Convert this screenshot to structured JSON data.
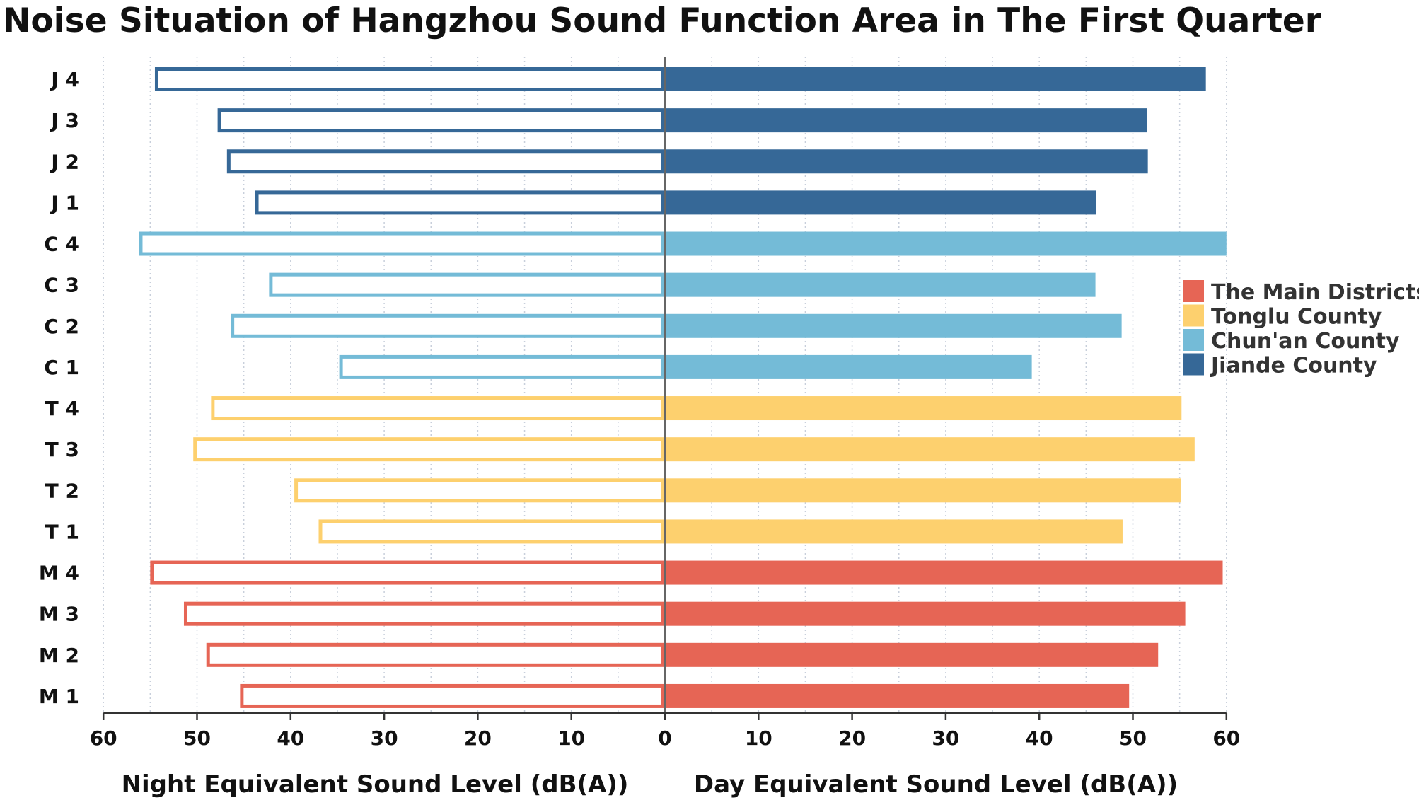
{
  "chart_data": {
    "type": "bar",
    "orientation": "horizontal-diverging",
    "title": "Noise Situation of Hangzhou Sound Function Area in The First Quarter",
    "xlabel_left": "Night Equivalent Sound Level   (dB(A))",
    "xlabel_right": "Day Equivalent Sound Level  (dB(A))",
    "xlim": [
      0,
      60
    ],
    "ticks": [
      60,
      50,
      40,
      30,
      20,
      10,
      0,
      10,
      20,
      30,
      40,
      50,
      60
    ],
    "grid": "vertical dotted",
    "legend_position": "right",
    "legend": [
      {
        "name": "The Main Districts",
        "color": "#e66555"
      },
      {
        "name": "Tonglu County",
        "color": "#fdd06e"
      },
      {
        "name": "Chun'an County",
        "color": "#74bbd7"
      },
      {
        "name": "Jiande County",
        "color": "#366897"
      }
    ],
    "categories": [
      "J 4",
      "J 3",
      "J 2",
      "J 1",
      "C 4",
      "C 3",
      "C 2",
      "C 1",
      "T 4",
      "T 3",
      "T 2",
      "T 1",
      "M 4",
      "M 3",
      "M 2",
      "M 1"
    ],
    "groups": [
      3,
      3,
      3,
      3,
      2,
      2,
      2,
      2,
      1,
      1,
      1,
      1,
      0,
      0,
      0,
      0
    ],
    "night_values": [
      54.5,
      47.8,
      46.8,
      43.8,
      56.2,
      42.3,
      46.4,
      34.8,
      48.5,
      50.4,
      39.6,
      37.0,
      55.0,
      51.4,
      49.0,
      45.4
    ],
    "day_values": [
      57.8,
      51.5,
      51.6,
      46.1,
      60.0,
      46.0,
      48.8,
      39.2,
      55.2,
      56.6,
      55.1,
      48.9,
      59.6,
      55.6,
      52.7,
      49.6
    ]
  }
}
